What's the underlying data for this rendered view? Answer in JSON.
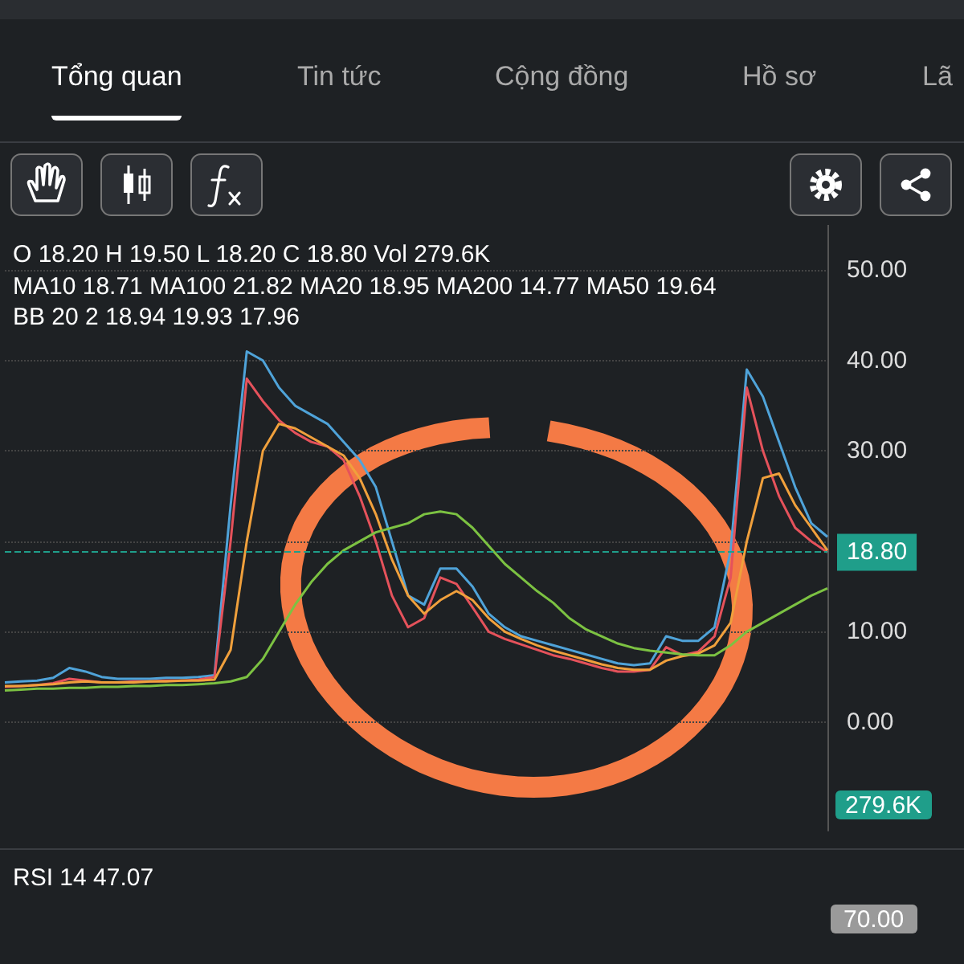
{
  "chart_data": {
    "type": "line",
    "categories": [
      null,
      null,
      null,
      null,
      null,
      null,
      null,
      null,
      null,
      null,
      null,
      null,
      null,
      null,
      null,
      null,
      null,
      null,
      null,
      null,
      null,
      null,
      null,
      null,
      null,
      null,
      null,
      null,
      null,
      null,
      null,
      null,
      null,
      null,
      null,
      null,
      null,
      null,
      null,
      null,
      null,
      null,
      null,
      null,
      null,
      null,
      null,
      null,
      null,
      null,
      null,
      null
    ],
    "series": [
      {
        "color": "#4fa3d9",
        "values": [
          4.4,
          4.5,
          4.6,
          4.9,
          6.0,
          5.6,
          5.0,
          4.8,
          4.8,
          4.8,
          4.9,
          4.9,
          5.0,
          5.2,
          24,
          41,
          40,
          37,
          35,
          34,
          33,
          31,
          29,
          26,
          20,
          14,
          13,
          17,
          17,
          15,
          12,
          10.5,
          9.5,
          9,
          8.5,
          8,
          7.5,
          7,
          6.5,
          6.3,
          6.5,
          9.5,
          9,
          9,
          10.5,
          19,
          39,
          36,
          31,
          26,
          22,
          20.5
        ]
      },
      {
        "color": "#e5525b",
        "values": [
          3.9,
          4.0,
          4.1,
          4.3,
          4.8,
          4.6,
          4.4,
          4.4,
          4.5,
          4.5,
          4.6,
          4.6,
          4.7,
          5.0,
          20,
          38,
          35.5,
          33.4,
          32,
          31,
          30.5,
          29,
          25,
          20,
          14,
          10.5,
          11.5,
          16,
          15.3,
          12.7,
          10,
          9.2,
          8.6,
          8,
          7.4,
          7,
          6.5,
          6,
          5.6,
          5.6,
          5.8,
          8.3,
          7.4,
          7.8,
          9.5,
          16,
          37,
          30,
          25,
          21.5,
          20,
          18.8
        ]
      },
      {
        "color": "#f0a03c",
        "values": [
          4.0,
          4.0,
          4.1,
          4.2,
          4.4,
          4.5,
          4.4,
          4.4,
          4.4,
          4.5,
          4.5,
          4.6,
          4.6,
          4.7,
          8,
          20,
          30,
          33,
          32.5,
          31.5,
          30.5,
          29.5,
          27,
          23,
          18,
          14,
          12,
          13.5,
          14.5,
          13.5,
          11.5,
          10,
          9.2,
          8.5,
          7.9,
          7.4,
          6.9,
          6.4,
          6,
          5.8,
          5.8,
          6.8,
          7.3,
          7.6,
          8.5,
          11,
          20,
          27,
          27.5,
          24,
          21.5,
          19
        ]
      },
      {
        "color": "#7cc242",
        "values": [
          3.5,
          3.6,
          3.7,
          3.7,
          3.8,
          3.8,
          3.9,
          3.9,
          4.0,
          4.0,
          4.1,
          4.1,
          4.2,
          4.3,
          4.5,
          5,
          7,
          10,
          13,
          15.5,
          17.5,
          19,
          20,
          21,
          21.5,
          22,
          23,
          23.3,
          23,
          21.5,
          19.5,
          17.5,
          16,
          14.5,
          13.2,
          11.5,
          10.3,
          9.5,
          8.7,
          8.2,
          7.9,
          7.7,
          7.5,
          7.4,
          7.4,
          8.5,
          10,
          11,
          12,
          13,
          14,
          14.8
        ]
      }
    ],
    "ylim": [
      -12,
      55
    ],
    "yticks": [
      {
        "value": 0,
        "label": "0.00"
      },
      {
        "value": 10,
        "label": "10.00"
      },
      {
        "value": 20,
        "label": null
      },
      {
        "value": 30,
        "label": "30.00"
      },
      {
        "value": 40,
        "label": "40.00"
      },
      {
        "value": 50,
        "label": "50.00"
      }
    ],
    "grid": "y",
    "marker": "none",
    "ref_lines": [
      {
        "axis": "y",
        "value": 18.8,
        "label": "18.80",
        "color": "#1f9e8a",
        "line_style": "dashed"
      }
    ],
    "annotations": [
      "O 18.20 H 19.50 L 18.20 C 18.80 Vol 279.6K",
      "MA10 18.71 MA100 21.82 MA20 18.95 MA200 14.77 MA50 19.64",
      "BB 20 2 18.94 19.93 17.96",
      "279.6K",
      "RSI 14 47.07",
      "70.00",
      "Tổng quan",
      "Tin tức",
      "Cộng đồng",
      "Hồ sơ",
      "Lã"
    ]
  }
}
